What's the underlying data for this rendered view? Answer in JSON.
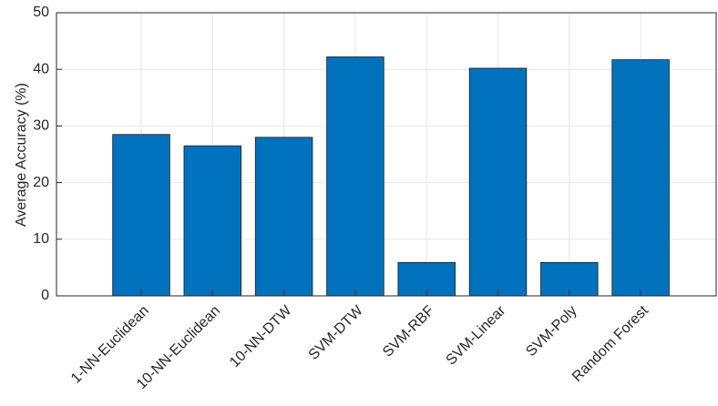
{
  "chart_data": {
    "type": "bar",
    "y_label": "Average Accuracy (%)",
    "categories": [
      "1-NN-Euclidean",
      "10-NN-Euclidean",
      "10-NN-DTW",
      "SVM-DTW",
      "SVM-RBF",
      "SVM-Linear",
      "SVM-Poly",
      "Random Forest"
    ],
    "values": [
      28.5,
      26.5,
      28,
      42.2,
      5.9,
      40.2,
      5.9,
      41.7
    ],
    "color": "#0072bd",
    "ylim": [
      0,
      50
    ],
    "yticks": [
      0,
      10,
      20,
      30,
      40,
      50
    ],
    "grid": true
  }
}
